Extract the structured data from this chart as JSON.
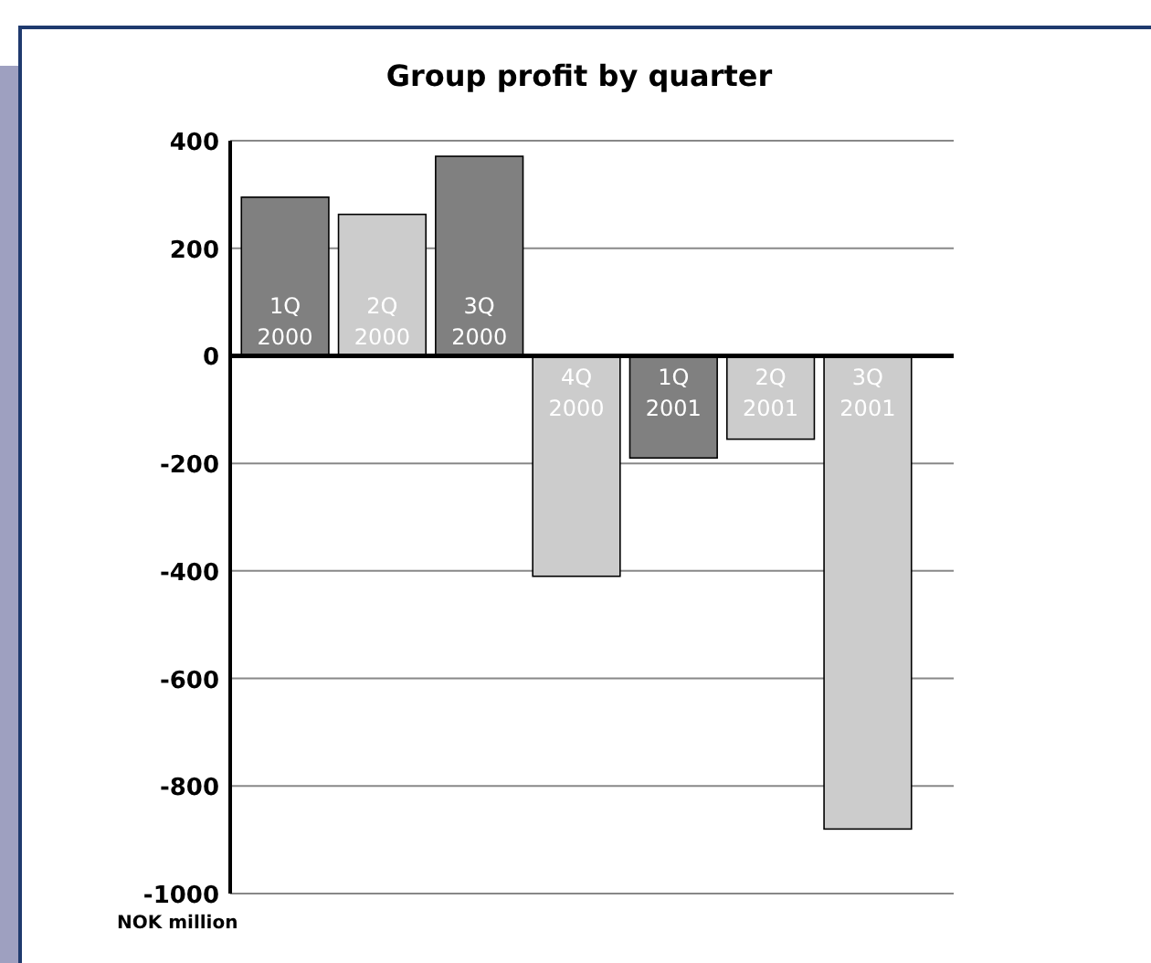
{
  "chart_data": {
    "type": "bar",
    "title": "Group profit by quarter",
    "ylabel": "NOK million",
    "categories": [
      "1Q\n2000",
      "2Q\n2000",
      "3Q\n2000",
      "4Q\n2000",
      "1Q\n2001",
      "2Q\n2001",
      "3Q\n2001"
    ],
    "values": [
      295,
      263,
      371,
      -410,
      -190,
      -155,
      -880
    ],
    "colors": [
      "#808080",
      "#cccccc",
      "#808080",
      "#cccccc",
      "#808080",
      "#cccccc",
      "#cccccc"
    ],
    "ylim": [
      -1000,
      400
    ],
    "yticks": [
      -1000,
      -800,
      -600,
      -400,
      -200,
      0,
      200,
      400
    ],
    "grid": "y"
  }
}
